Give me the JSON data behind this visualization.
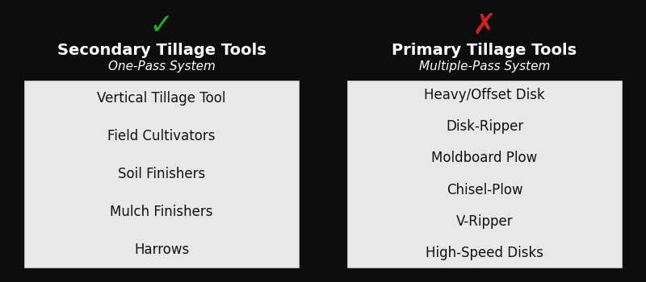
{
  "background_color": "#0d0d0d",
  "left_check_symbol": "✓",
  "right_x_symbol": "✗",
  "check_color": "#22aa22",
  "x_color": "#cc2222",
  "left_title": "Secondary Tillage Tools",
  "left_subtitle": "One-Pass System",
  "right_title": "Primary Tillage Tools",
  "right_subtitle": "Multiple-Pass System",
  "left_items": [
    "Vertical Tillage Tool",
    "Field Cultivators",
    "Soil Finishers",
    "Mulch Finishers",
    "Harrows"
  ],
  "right_items": [
    "Heavy/Offset Disk",
    "Disk-Ripper",
    "Moldboard Plow",
    "Chisel-Plow",
    "V-Ripper",
    "High-Speed Disks"
  ],
  "box_color": "#e8e8e8",
  "title_fontsize": 14,
  "subtitle_fontsize": 11,
  "item_fontsize": 12,
  "symbol_fontsize": 26,
  "text_color": "#ffffff",
  "box_text_color": "#111111"
}
